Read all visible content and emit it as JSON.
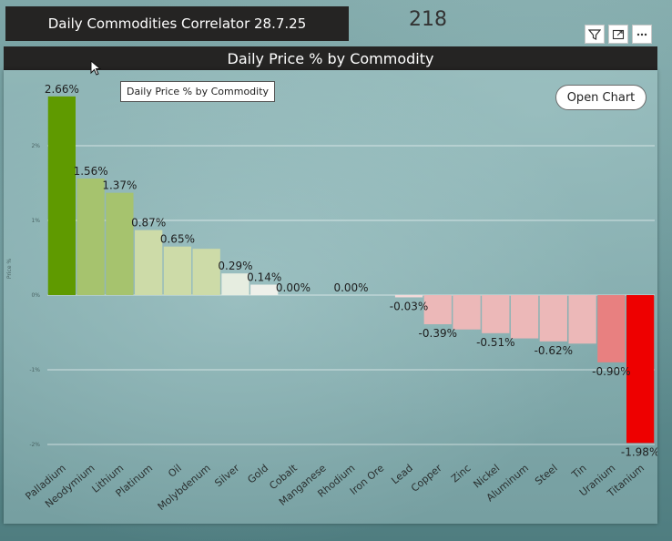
{
  "app": {
    "title": "Daily Commodities Correlator 28.7.25",
    "count": "218"
  },
  "visual": {
    "header_title": "Daily Price %  by Commodity",
    "tooltip": "Daily Price %  by Commodity",
    "open_chart_label": "Open Chart",
    "header_icons": [
      "filter-icon",
      "focus-mode-icon",
      "more-options-icon"
    ]
  },
  "chart_data": {
    "type": "bar",
    "ylabel": "Price %",
    "ylim": [
      -2.1,
      2.9
    ],
    "yticks": [
      {
        "value": 2,
        "label": "2%"
      },
      {
        "value": 1,
        "label": "1%"
      },
      {
        "value": 0,
        "label": "0%"
      },
      {
        "value": -1,
        "label": "-1%"
      },
      {
        "value": -2,
        "label": "-2%"
      }
    ],
    "grid": true,
    "categories": [
      "Palladium",
      "Neodymium",
      "Lithium",
      "Platinum",
      "Oil",
      "Molybdenum",
      "Silver",
      "Gold",
      "Cobalt",
      "Manganese",
      "Rhodium",
      "Iron Ore",
      "Lead",
      "Copper",
      "Zinc",
      "Nickel",
      "Aluminum",
      "Steel",
      "Tin",
      "Uranium",
      "Titanium"
    ],
    "values": [
      2.66,
      1.56,
      1.37,
      0.87,
      0.65,
      0.62,
      0.29,
      0.14,
      0.0,
      0.0,
      0.0,
      0.0,
      -0.03,
      -0.39,
      -0.46,
      -0.51,
      -0.58,
      -0.62,
      -0.65,
      -0.9,
      -1.98
    ],
    "data_labels": [
      "2.66%",
      "1.56%",
      "1.37%",
      "0.87%",
      "0.65%",
      "",
      "0.29%",
      "0.14%",
      "0.00%",
      "",
      "0.00%",
      "",
      "-0.03%",
      "-0.39%",
      "",
      "-0.51%",
      "",
      "-0.62%",
      "",
      "-0.90%",
      "-1.98%"
    ],
    "colors": [
      "#5f9a00",
      "#a6c36e",
      "#a6c36e",
      "#cddba8",
      "#cddba8",
      "#cddba8",
      "#e6ede0",
      "#eef0ea",
      "#ffffff",
      "#ffffff",
      "#ffffff",
      "#ffffff",
      "#f3dada",
      "#ecb8b8",
      "#ecb8b8",
      "#ecb8b8",
      "#ecb8b8",
      "#ecb8b8",
      "#ecb8b8",
      "#e88080",
      "#ee0000"
    ]
  }
}
